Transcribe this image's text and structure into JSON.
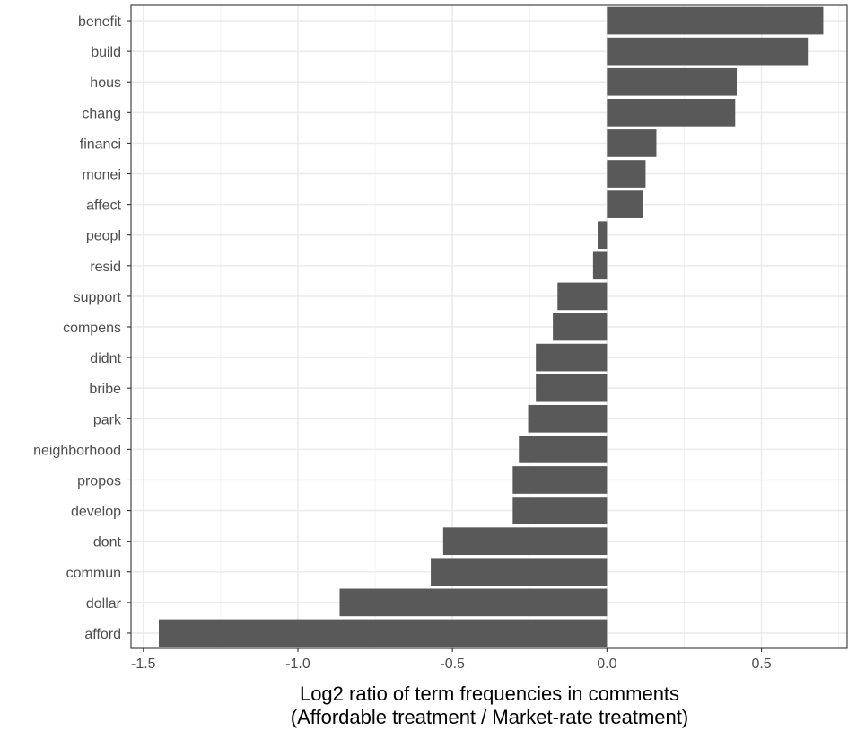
{
  "chart_data": {
    "type": "bar",
    "orientation": "horizontal",
    "categories": [
      "benefit",
      "build",
      "hous",
      "chang",
      "financi",
      "monei",
      "affect",
      "peopl",
      "resid",
      "support",
      "compens",
      "didnt",
      "bribe",
      "park",
      "neighborhood",
      "propos",
      "develop",
      "dont",
      "commun",
      "dollar",
      "afford"
    ],
    "values": [
      0.7,
      0.65,
      0.42,
      0.415,
      0.16,
      0.125,
      0.115,
      -0.03,
      -0.045,
      -0.16,
      -0.175,
      -0.23,
      -0.23,
      -0.255,
      -0.285,
      -0.305,
      -0.305,
      -0.53,
      -0.57,
      -0.865,
      -1.45
    ],
    "xlabel_line1": "Log2 ratio of term frequencies in comments",
    "xlabel_line2": "(Affordable treatment / Market-rate treatment)",
    "ylabel": "",
    "xlim": [
      -1.54,
      0.78
    ],
    "xticks": [
      -1.5,
      -1.0,
      -0.5,
      0.0,
      0.5
    ],
    "xtick_labels": [
      "-1.5",
      "-1.0",
      "-0.5",
      "0.0",
      "0.5"
    ],
    "grid": true,
    "bar_color": "#595959"
  }
}
